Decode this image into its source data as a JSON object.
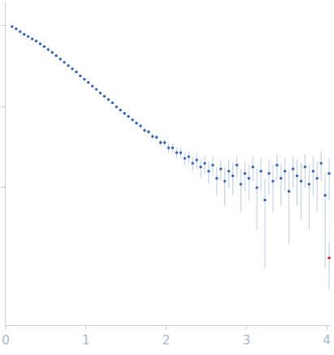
{
  "chart_data": {
    "type": "scatter",
    "log": "y",
    "grid": false,
    "tick_labels": "x",
    "xlim": [
      0,
      4.05
    ],
    "xticks": [
      0,
      1,
      2,
      3,
      4
    ],
    "ylim": [
      0.0002,
      2
    ],
    "yticks": [
      0.01,
      0.1,
      1
    ],
    "series": [
      {
        "color": "#3a66b8",
        "marker": "circle",
        "x": [
          0.08,
          0.13,
          0.18,
          0.23,
          0.28,
          0.33,
          0.38,
          0.43,
          0.48,
          0.53,
          0.58,
          0.63,
          0.68,
          0.73,
          0.78,
          0.83,
          0.88,
          0.93,
          0.98,
          1.03,
          1.08,
          1.13,
          1.18,
          1.23,
          1.28,
          1.33,
          1.38,
          1.43,
          1.48,
          1.53,
          1.58,
          1.63,
          1.68,
          1.73,
          1.78,
          1.83,
          1.88,
          1.93,
          1.98,
          2.03,
          2.08,
          2.13,
          2.18,
          2.23,
          2.28,
          2.33,
          2.38,
          2.43,
          2.48,
          2.53,
          2.58,
          2.63,
          2.68,
          2.73,
          2.78,
          2.83,
          2.88,
          2.93,
          2.98,
          3.03,
          3.08,
          3.13,
          3.18,
          3.23,
          3.28,
          3.33,
          3.38,
          3.43,
          3.48,
          3.53,
          3.58,
          3.63,
          3.68,
          3.73,
          3.78,
          3.83,
          3.88,
          3.93,
          3.98,
          4.03
        ],
        "values": [
          0.98,
          0.92,
          0.85,
          0.79,
          0.74,
          0.69,
          0.65,
          0.6,
          0.556,
          0.51,
          0.47,
          0.43,
          0.39,
          0.355,
          0.324,
          0.295,
          0.27,
          0.24,
          0.22,
          0.2,
          0.18,
          0.164,
          0.148,
          0.135,
          0.123,
          0.112,
          0.1,
          0.091,
          0.083,
          0.076,
          0.069,
          0.063,
          0.058,
          0.051,
          0.049,
          0.043,
          0.042,
          0.036,
          0.036,
          0.031,
          0.031,
          0.027,
          0.027,
          0.023,
          0.024,
          0.02,
          0.022,
          0.018,
          0.02,
          0.016,
          0.019,
          0.013,
          0.017,
          0.012,
          0.016,
          0.014,
          0.019,
          0.011,
          0.015,
          0.013,
          0.018,
          0.01,
          0.016,
          0.007,
          0.015,
          0.012,
          0.019,
          0.013,
          0.016,
          0.009,
          0.017,
          0.014,
          0.012,
          0.018,
          0.011,
          0.016,
          0.013,
          0.02,
          0.008,
          0.015
        ],
        "errors": [
          0.01,
          0.009,
          0.008,
          0.008,
          0.007,
          0.007,
          0.006,
          0.006,
          0.006,
          0.005,
          0.005,
          0.005,
          0.005,
          0.004,
          0.004,
          0.004,
          0.004,
          0.004,
          0.004,
          0.004,
          0.004,
          0.003,
          0.003,
          0.003,
          0.003,
          0.003,
          0.003,
          0.003,
          0.003,
          0.003,
          0.003,
          0.003,
          0.003,
          0.003,
          0.003,
          0.003,
          0.003,
          0.003,
          0.003,
          0.004,
          0.004,
          0.004,
          0.004,
          0.004,
          0.004,
          0.004,
          0.005,
          0.005,
          0.005,
          0.005,
          0.005,
          0.005,
          0.005,
          0.006,
          0.006,
          0.006,
          0.006,
          0.006,
          0.006,
          0.006,
          0.006,
          0.007,
          0.007,
          0.006,
          0.007,
          0.007,
          0.007,
          0.007,
          0.007,
          0.007,
          0.007,
          0.008,
          0.008,
          0.008,
          0.008,
          0.008,
          0.008,
          0.008,
          0.007,
          0.008
        ]
      },
      {
        "color": "#e02020",
        "marker": "circle",
        "x": [
          4.03
        ],
        "values": [
          0.00135
        ],
        "errors": [
          0.0008
        ]
      }
    ]
  }
}
